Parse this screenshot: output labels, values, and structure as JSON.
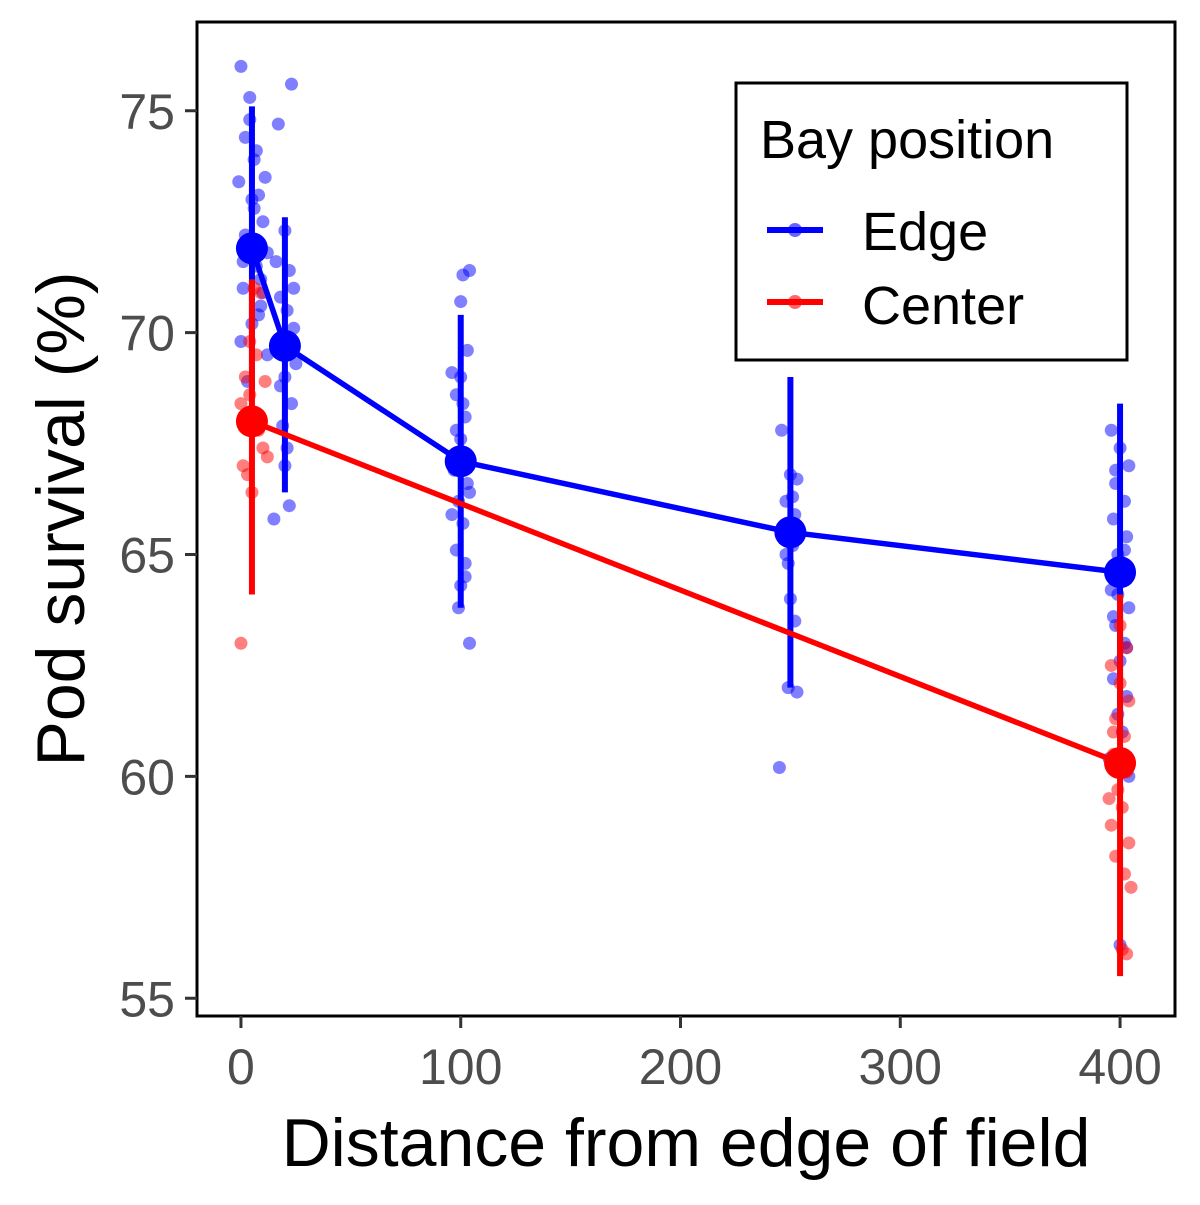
{
  "chart_data": {
    "type": "scatter",
    "xlabel": "Distance from edge of field",
    "ylabel": "Pod survival (%)",
    "xlim": [
      -20,
      425
    ],
    "ylim": [
      54.6,
      77.0
    ],
    "x_ticks": [
      0,
      100,
      200,
      300,
      400
    ],
    "x_tick_labels": [
      "0",
      "100",
      "200",
      "300",
      "400"
    ],
    "y_ticks": [
      55,
      60,
      65,
      70,
      75
    ],
    "y_tick_labels": [
      "55",
      "60",
      "65",
      "70",
      "75"
    ],
    "grid": false,
    "legend": {
      "title": "Bay position",
      "position": "top-right",
      "entries": [
        "Edge",
        "Center"
      ]
    },
    "series": [
      {
        "name": "Edge",
        "color": "#0000ff",
        "means": [
          {
            "x": 5,
            "y": 71.9,
            "lo": 68.7,
            "hi": 75.1
          },
          {
            "x": 20,
            "y": 69.7,
            "lo": 66.4,
            "hi": 72.6
          },
          {
            "x": 100,
            "y": 67.1,
            "lo": 63.8,
            "hi": 70.4
          },
          {
            "x": 250,
            "y": 65.5,
            "lo": 62.0,
            "hi": 69.0
          },
          {
            "x": 400,
            "y": 64.6,
            "lo": 60.8,
            "hi": 68.4
          }
        ],
        "points": [
          {
            "x": 0,
            "y": 76.0
          },
          {
            "x": 2,
            "y": 74.4
          },
          {
            "x": 4,
            "y": 75.3
          },
          {
            "x": 6,
            "y": 73.9
          },
          {
            "x": 8,
            "y": 73.1
          },
          {
            "x": 10,
            "y": 72.5
          },
          {
            "x": 3,
            "y": 72.0
          },
          {
            "x": 7,
            "y": 71.5
          },
          {
            "x": 1,
            "y": 71.0
          },
          {
            "x": 9,
            "y": 70.6
          },
          {
            "x": 5,
            "y": 70.2
          },
          {
            "x": 0,
            "y": 69.8
          },
          {
            "x": 11,
            "y": 73.5
          },
          {
            "x": -1,
            "y": 73.4
          },
          {
            "x": 6,
            "y": 72.8
          },
          {
            "x": 12,
            "y": 71.8
          },
          {
            "x": 4,
            "y": 74.8
          },
          {
            "x": 2,
            "y": 72.2
          },
          {
            "x": 10,
            "y": 70.9
          },
          {
            "x": 8,
            "y": 70.4
          },
          {
            "x": 3,
            "y": 68.9
          },
          {
            "x": 12,
            "y": 69.5
          },
          {
            "x": 1,
            "y": 71.6
          },
          {
            "x": 7,
            "y": 74.1
          },
          {
            "x": 9,
            "y": 71.2
          },
          {
            "x": 5,
            "y": 73.0
          },
          {
            "x": 20,
            "y": 72.3
          },
          {
            "x": 22,
            "y": 71.4
          },
          {
            "x": 18,
            "y": 70.8
          },
          {
            "x": 24,
            "y": 70.1
          },
          {
            "x": 16,
            "y": 69.6
          },
          {
            "x": 20,
            "y": 69.0
          },
          {
            "x": 23,
            "y": 68.4
          },
          {
            "x": 19,
            "y": 67.9
          },
          {
            "x": 21,
            "y": 67.4
          },
          {
            "x": 22,
            "y": 66.1
          },
          {
            "x": 15,
            "y": 65.8
          },
          {
            "x": 24,
            "y": 71.0
          },
          {
            "x": 17,
            "y": 74.7
          },
          {
            "x": 25,
            "y": 69.3
          },
          {
            "x": 23,
            "y": 75.6
          },
          {
            "x": 18,
            "y": 68.8
          },
          {
            "x": 21,
            "y": 70.5
          },
          {
            "x": 20,
            "y": 67.0
          },
          {
            "x": 16,
            "y": 71.6
          },
          {
            "x": 96,
            "y": 69.1
          },
          {
            "x": 100,
            "y": 70.7
          },
          {
            "x": 104,
            "y": 71.4
          },
          {
            "x": 101,
            "y": 71.3
          },
          {
            "x": 98,
            "y": 68.6
          },
          {
            "x": 102,
            "y": 68.1
          },
          {
            "x": 100,
            "y": 67.6
          },
          {
            "x": 97,
            "y": 67.1
          },
          {
            "x": 103,
            "y": 66.6
          },
          {
            "x": 99,
            "y": 66.2
          },
          {
            "x": 101,
            "y": 65.7
          },
          {
            "x": 98,
            "y": 65.1
          },
          {
            "x": 102,
            "y": 64.8
          },
          {
            "x": 100,
            "y": 64.3
          },
          {
            "x": 104,
            "y": 63.0
          },
          {
            "x": 99,
            "y": 63.8
          },
          {
            "x": 103,
            "y": 69.6
          },
          {
            "x": 97,
            "y": 66.9
          },
          {
            "x": 101,
            "y": 68.4
          },
          {
            "x": 96,
            "y": 65.9
          },
          {
            "x": 104,
            "y": 66.4
          },
          {
            "x": 98,
            "y": 67.8
          },
          {
            "x": 102,
            "y": 64.5
          },
          {
            "x": 100,
            "y": 69.0
          },
          {
            "x": 246,
            "y": 67.8
          },
          {
            "x": 250,
            "y": 66.8
          },
          {
            "x": 248,
            "y": 66.2
          },
          {
            "x": 252,
            "y": 65.9
          },
          {
            "x": 247,
            "y": 65.6
          },
          {
            "x": 251,
            "y": 65.2
          },
          {
            "x": 249,
            "y": 64.8
          },
          {
            "x": 253,
            "y": 66.7
          },
          {
            "x": 250,
            "y": 64.0
          },
          {
            "x": 252,
            "y": 63.5
          },
          {
            "x": 249,
            "y": 62.0
          },
          {
            "x": 253,
            "y": 61.9
          },
          {
            "x": 245,
            "y": 60.2
          },
          {
            "x": 248,
            "y": 65.0
          },
          {
            "x": 251,
            "y": 66.3
          },
          {
            "x": 396,
            "y": 67.8
          },
          {
            "x": 400,
            "y": 67.4
          },
          {
            "x": 404,
            "y": 67.0
          },
          {
            "x": 398,
            "y": 66.6
          },
          {
            "x": 402,
            "y": 66.2
          },
          {
            "x": 397,
            "y": 65.8
          },
          {
            "x": 403,
            "y": 65.4
          },
          {
            "x": 399,
            "y": 65.0
          },
          {
            "x": 401,
            "y": 64.6
          },
          {
            "x": 396,
            "y": 64.2
          },
          {
            "x": 404,
            "y": 63.8
          },
          {
            "x": 398,
            "y": 63.4
          },
          {
            "x": 402,
            "y": 63.0
          },
          {
            "x": 400,
            "y": 62.6
          },
          {
            "x": 397,
            "y": 62.2
          },
          {
            "x": 403,
            "y": 61.8
          },
          {
            "x": 399,
            "y": 61.4
          },
          {
            "x": 401,
            "y": 61.0
          },
          {
            "x": 395,
            "y": 60.4
          },
          {
            "x": 404,
            "y": 60.0
          },
          {
            "x": 400,
            "y": 56.2
          },
          {
            "x": 398,
            "y": 66.9
          },
          {
            "x": 402,
            "y": 65.1
          },
          {
            "x": 397,
            "y": 63.6
          },
          {
            "x": 403,
            "y": 62.9
          },
          {
            "x": 399,
            "y": 64.1
          }
        ]
      },
      {
        "name": "Center",
        "color": "#ff0000",
        "means": [
          {
            "x": 5,
            "y": 68.0,
            "lo": 64.1,
            "hi": 71.2
          },
          {
            "x": 400,
            "y": 60.3,
            "lo": 55.5,
            "hi": 64.1
          }
        ],
        "points": [
          {
            "x": 0,
            "y": 63.0
          },
          {
            "x": 2,
            "y": 69.0
          },
          {
            "x": 4,
            "y": 68.6
          },
          {
            "x": 6,
            "y": 68.2
          },
          {
            "x": 8,
            "y": 67.8
          },
          {
            "x": 10,
            "y": 67.4
          },
          {
            "x": 1,
            "y": 67.0
          },
          {
            "x": 3,
            "y": 66.8
          },
          {
            "x": 5,
            "y": 66.4
          },
          {
            "x": 7,
            "y": 69.5
          },
          {
            "x": 9,
            "y": 70.9
          },
          {
            "x": 11,
            "y": 68.9
          },
          {
            "x": 0,
            "y": 68.4
          },
          {
            "x": 12,
            "y": 67.2
          },
          {
            "x": 6,
            "y": 71.0
          },
          {
            "x": 4,
            "y": 69.8
          },
          {
            "x": 396,
            "y": 62.5
          },
          {
            "x": 400,
            "y": 62.1
          },
          {
            "x": 404,
            "y": 61.7
          },
          {
            "x": 398,
            "y": 61.3
          },
          {
            "x": 402,
            "y": 60.9
          },
          {
            "x": 397,
            "y": 60.5
          },
          {
            "x": 403,
            "y": 60.1
          },
          {
            "x": 399,
            "y": 59.7
          },
          {
            "x": 401,
            "y": 59.3
          },
          {
            "x": 396,
            "y": 58.9
          },
          {
            "x": 404,
            "y": 58.5
          },
          {
            "x": 398,
            "y": 58.2
          },
          {
            "x": 402,
            "y": 57.8
          },
          {
            "x": 405,
            "y": 57.5
          },
          {
            "x": 395,
            "y": 59.5
          },
          {
            "x": 403,
            "y": 62.9
          },
          {
            "x": 400,
            "y": 63.4
          },
          {
            "x": 397,
            "y": 61.0
          },
          {
            "x": 401,
            "y": 56.1
          },
          {
            "x": 403,
            "y": 56.0
          }
        ]
      }
    ]
  }
}
